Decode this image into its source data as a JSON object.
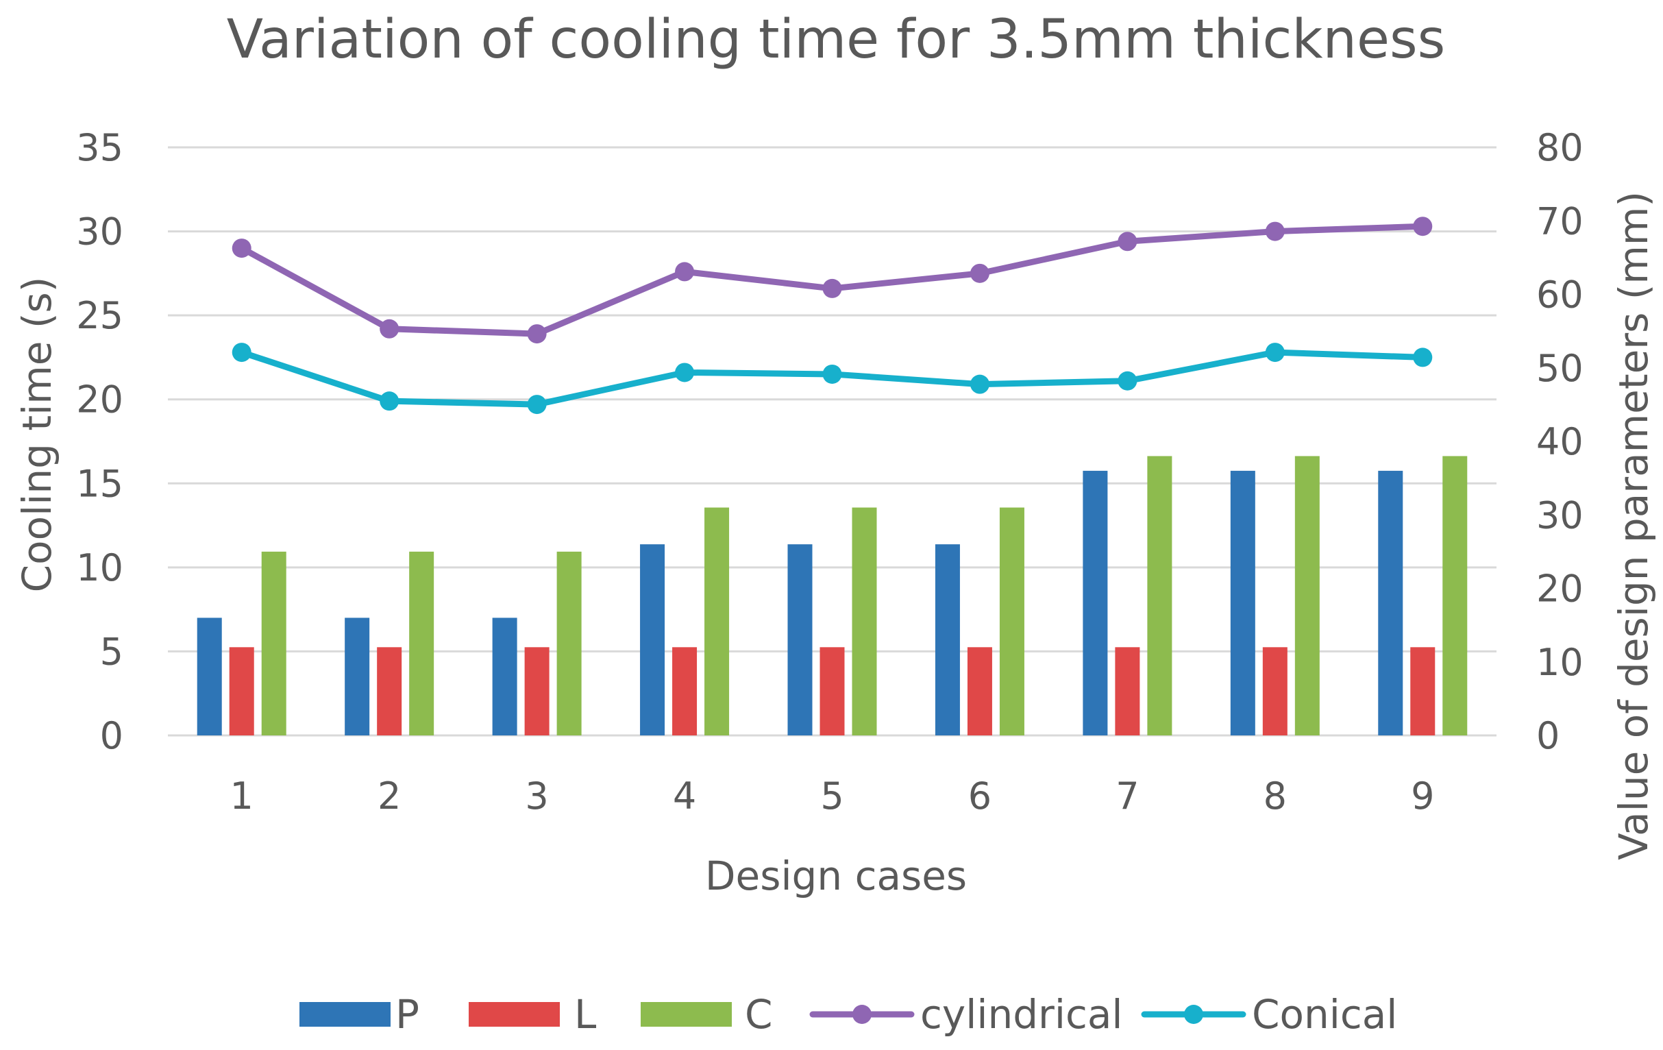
{
  "chart_data": {
    "type": "bar",
    "title": "Variation of cooling time for 3.5mm thickness",
    "xlabel": "Design cases",
    "ylabel": "Cooling time (s)",
    "y2label": "Value of design parameters (mm)",
    "categories": [
      "1",
      "2",
      "3",
      "4",
      "5",
      "6",
      "7",
      "8",
      "9"
    ],
    "ylim": [
      0,
      35
    ],
    "yticks": [
      0,
      5,
      10,
      15,
      20,
      25,
      30,
      35
    ],
    "y2lim": [
      0,
      80
    ],
    "y2ticks": [
      0,
      10,
      20,
      30,
      40,
      50,
      60,
      70,
      80
    ],
    "grid": true,
    "legend_position": "bottom",
    "series": [
      {
        "name": "P",
        "kind": "bar",
        "axis": "secondary",
        "color": "#2E75B6",
        "values": [
          16,
          16,
          16,
          26,
          26,
          26,
          36,
          36,
          36
        ]
      },
      {
        "name": "L",
        "kind": "bar",
        "axis": "secondary",
        "color": "#E04848",
        "values": [
          12,
          12,
          12,
          12,
          12,
          12,
          12,
          12,
          12
        ]
      },
      {
        "name": "C",
        "kind": "bar",
        "axis": "secondary",
        "color": "#8DBB4E",
        "values": [
          25,
          25,
          25,
          31,
          31,
          31,
          38,
          38,
          38
        ]
      },
      {
        "name": "cylindrical",
        "kind": "line",
        "axis": "primary",
        "color": "#8F66B3",
        "values": [
          29.0,
          24.2,
          23.9,
          27.6,
          26.6,
          27.5,
          29.4,
          30.0,
          30.3
        ]
      },
      {
        "name": "Conical",
        "kind": "line",
        "axis": "primary",
        "color": "#17B0CC",
        "values": [
          22.8,
          19.9,
          19.7,
          21.6,
          21.5,
          20.9,
          21.1,
          22.8,
          22.5
        ]
      }
    ]
  }
}
